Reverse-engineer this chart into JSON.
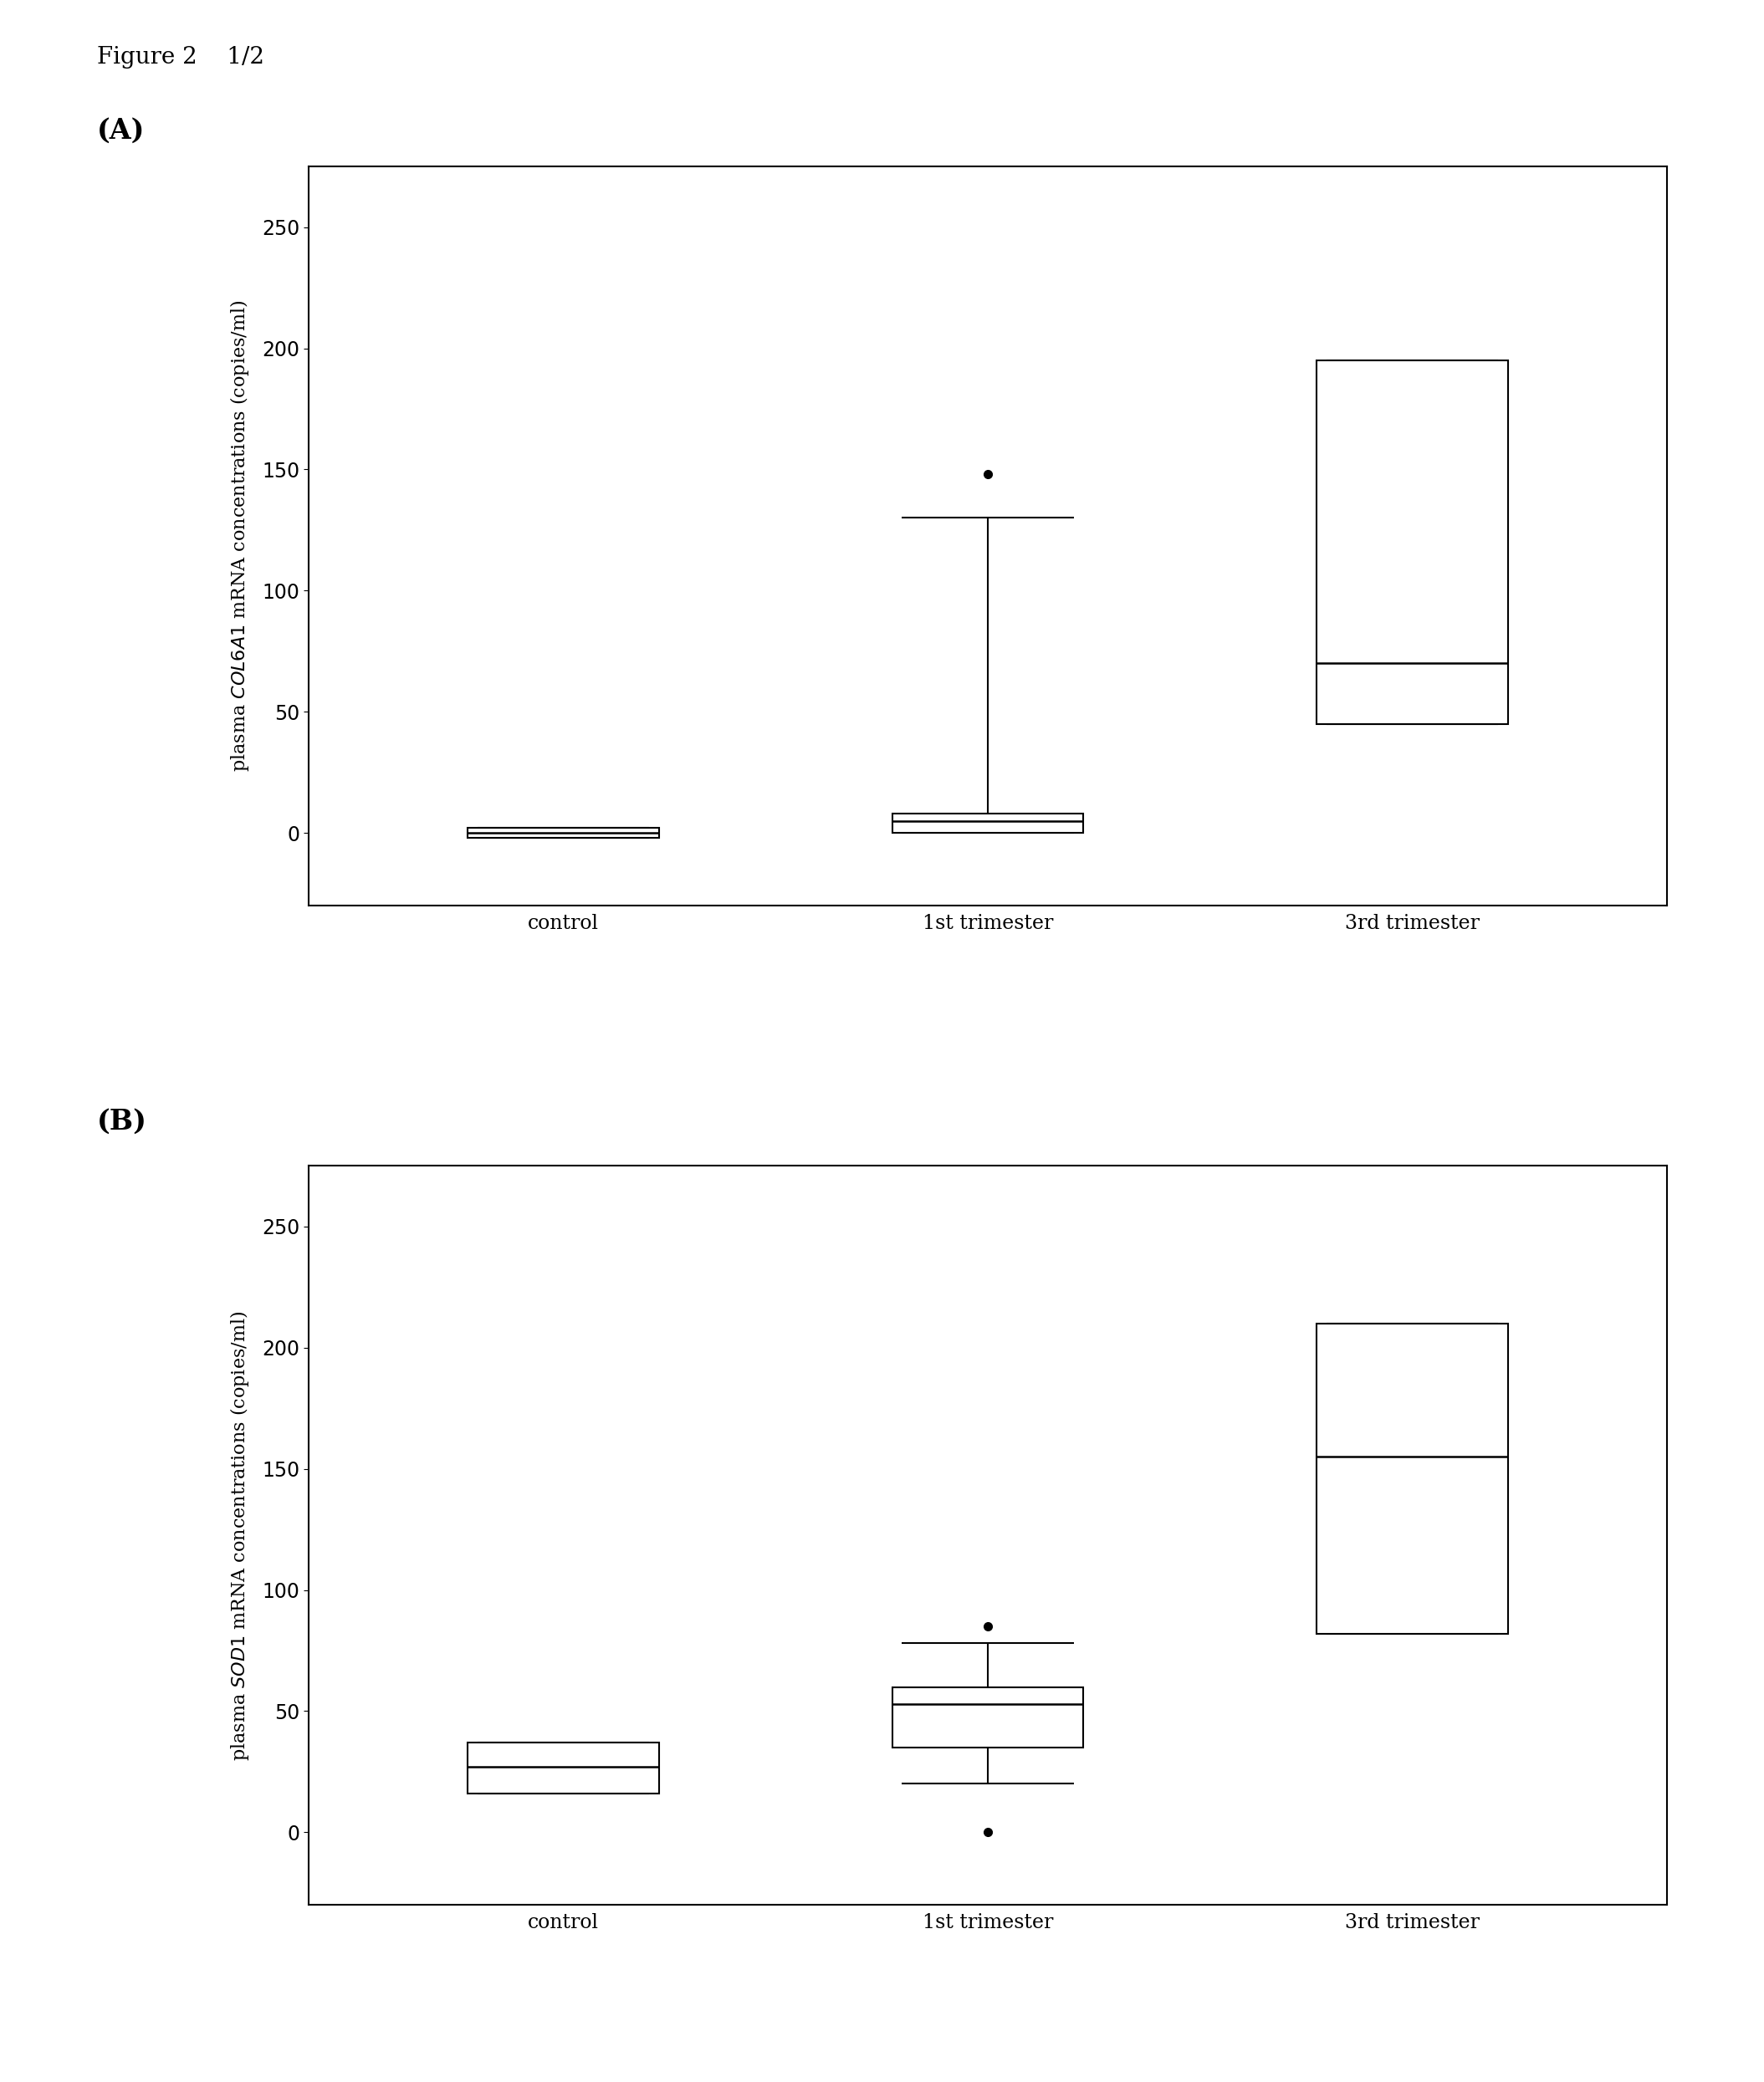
{
  "figure_label": "Figure 2    1/2",
  "panel_A_label": "(A)",
  "panel_B_label": "(B)",
  "panel_A_ylabel": "plasma $\\it{COL6A1}$ mRNA concentrations (copies/ml)",
  "panel_B_ylabel": "plasma $\\it{SOD1}$ mRNA concentrations (copies/ml)",
  "categories": [
    "control",
    "1st trimester",
    "3rd trimester"
  ],
  "panel_A": {
    "control": {
      "med": 0,
      "q1": -2,
      "q3": 2,
      "whisk_lo": -2,
      "whisk_hi": 2,
      "fliers": []
    },
    "1st_trimester": {
      "med": 5,
      "q1": 0,
      "q3": 8,
      "whisk_lo": 0,
      "whisk_hi": 130,
      "fliers": [
        148
      ]
    },
    "3rd_trimester": {
      "med": 70,
      "q1": 45,
      "q3": 195,
      "whisk_lo": 45,
      "whisk_hi": 195,
      "fliers": []
    }
  },
  "panel_B": {
    "control": {
      "med": 27,
      "q1": 16,
      "q3": 37,
      "whisk_lo": 16,
      "whisk_hi": 37,
      "fliers": []
    },
    "1st_trimester": {
      "med": 53,
      "q1": 35,
      "q3": 60,
      "whisk_lo": 20,
      "whisk_hi": 78,
      "fliers": [
        85,
        0
      ]
    },
    "3rd_trimester": {
      "med": 155,
      "q1": 82,
      "q3": 210,
      "whisk_lo": 82,
      "whisk_hi": 210,
      "fliers": []
    }
  },
  "ylim_A": [
    -30,
    275
  ],
  "ylim_B": [
    -30,
    275
  ],
  "yticks": [
    0,
    50,
    100,
    150,
    200,
    250
  ],
  "box_width": 0.45,
  "linewidth": 1.5,
  "background_color": "#ffffff",
  "flier_size": 7
}
